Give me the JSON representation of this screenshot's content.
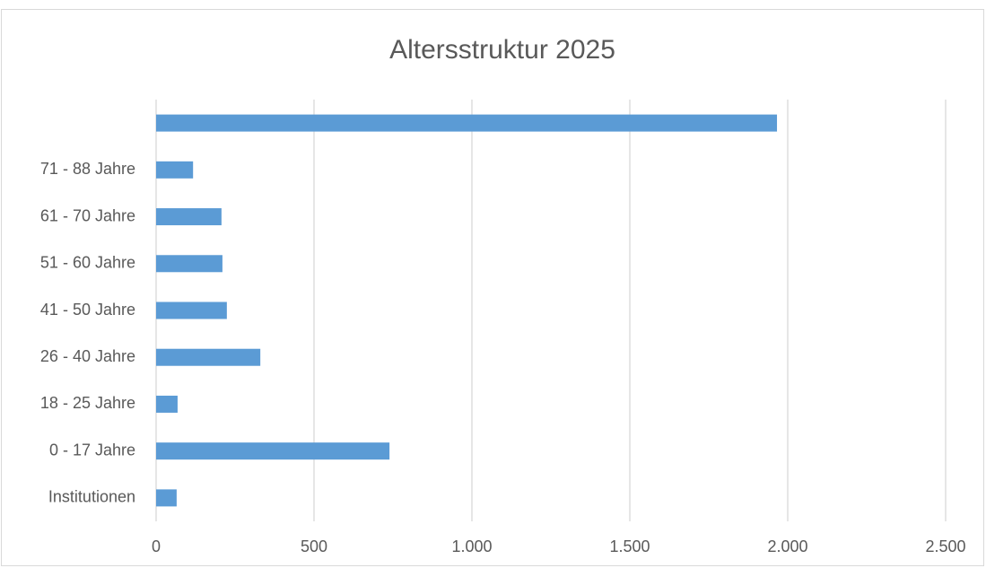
{
  "chart_data": {
    "type": "hbar",
    "title": "Altersstruktur 2025",
    "categories": [
      "Institutionen",
      "0 - 17 Jahre",
      "18 - 25 Jahre",
      "26 - 40 Jahre",
      "41 - 50 Jahre",
      "51 - 60 Jahre",
      "61 - 70 Jahre",
      "71 - 88 Jahre",
      null
    ],
    "values": [
      65,
      739,
      68,
      330,
      224,
      210,
      207,
      117,
      1966
    ],
    "color": "#5b9bd5",
    "xlim": [
      0,
      2500
    ],
    "xticks": [
      0,
      500,
      {
        "value": 1000,
        "label": "1.000"
      },
      {
        "value": 1500,
        "label": "1.500"
      },
      {
        "value": 2000,
        "label": "2.000"
      },
      {
        "value": 2500,
        "label": "2.500"
      }
    ],
    "grid": true
  }
}
